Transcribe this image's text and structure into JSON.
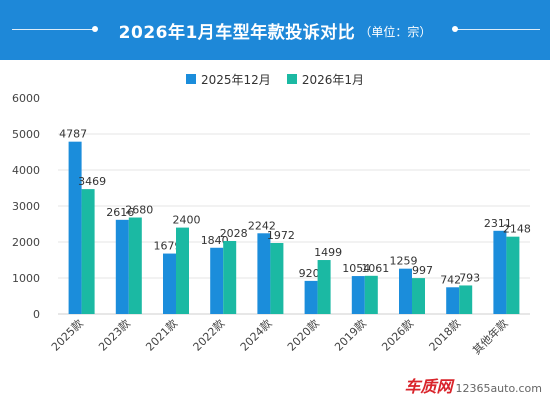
{
  "header": {
    "title": "2026年1月车型年款投诉对比",
    "subtitle": "（单位：宗）",
    "background": "#1e88d8"
  },
  "legend": {
    "items": [
      {
        "label": "2025年12月",
        "color": "#1b8ddb"
      },
      {
        "label": "2026年1月",
        "color": "#1bb9a3"
      }
    ]
  },
  "chart_data": {
    "type": "bar",
    "categories": [
      "2025款",
      "2023款",
      "2021款",
      "2022款",
      "2024款",
      "2020款",
      "2019款",
      "2026款",
      "2018款",
      "其他年款"
    ],
    "series": [
      {
        "name": "2025年12月",
        "color": "#1b8ddb",
        "values": [
          4787,
          2616,
          1679,
          1840,
          2242,
          920,
          1054,
          1259,
          742,
          2311
        ]
      },
      {
        "name": "2026年1月",
        "color": "#1bb9a3",
        "values": [
          3469,
          2680,
          2400,
          2028,
          1972,
          1499,
          1061,
          997,
          793,
          2148
        ]
      }
    ],
    "y_ticks": [
      "0",
      "1000",
      "2000",
      "3000",
      "4000",
      "5000",
      "6000"
    ],
    "ylim": [
      0,
      6000
    ],
    "grid": true,
    "legend_position": "top-center"
  },
  "watermark": {
    "brand": "车质网",
    "url": "12365auto.com"
  }
}
